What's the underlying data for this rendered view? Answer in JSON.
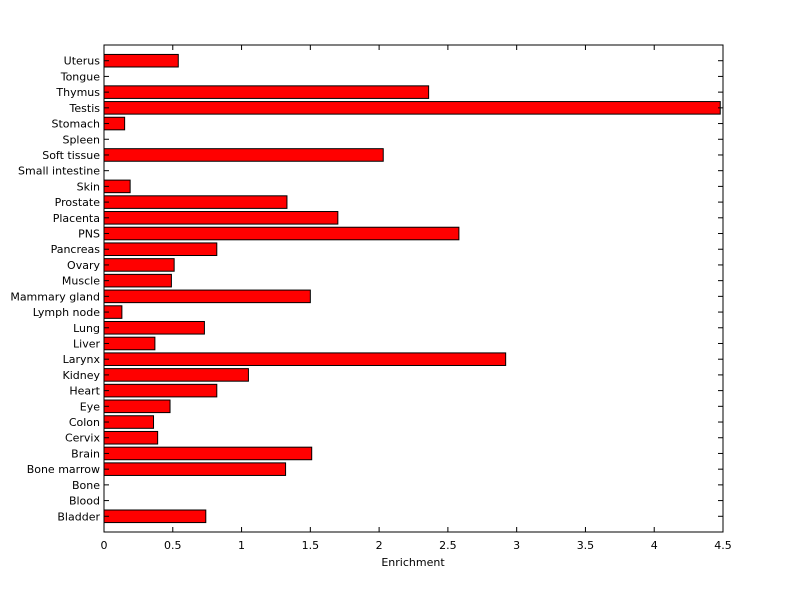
{
  "chart_data": {
    "type": "bar",
    "orientation": "horizontal",
    "title": "",
    "xlabel": "Enrichment",
    "ylabel": "",
    "xlim": [
      0,
      4.5
    ],
    "xticks": [
      0,
      0.5,
      1,
      1.5,
      2,
      2.5,
      3,
      3.5,
      4,
      4.5
    ],
    "xtick_labels": [
      "0",
      "0.5",
      "1",
      "1.5",
      "2",
      "2.5",
      "3",
      "3.5",
      "4",
      "4.5"
    ],
    "grid": false,
    "bar_color": "#ff0000",
    "bar_edge_color": "#000000",
    "categories": [
      "Bladder",
      "Blood",
      "Bone",
      "Bone marrow",
      "Brain",
      "Cervix",
      "Colon",
      "Eye",
      "Heart",
      "Kidney",
      "Larynx",
      "Liver",
      "Lung",
      "Lymph node",
      "Mammary gland",
      "Muscle",
      "Ovary",
      "Pancreas",
      "PNS",
      "Placenta",
      "Prostate",
      "Skin",
      "Small intestine",
      "Soft tissue",
      "Spleen",
      "Stomach",
      "Testis",
      "Thymus",
      "Tongue",
      "Uterus"
    ],
    "values": [
      0.74,
      0,
      0,
      1.32,
      1.51,
      0.39,
      0.36,
      0.48,
      0.82,
      1.05,
      2.92,
      0.37,
      0.73,
      0.13,
      1.5,
      0.49,
      0.51,
      0.82,
      2.58,
      1.7,
      1.33,
      0.19,
      0,
      2.03,
      0,
      0.15,
      4.48,
      2.36,
      0,
      0.54
    ]
  }
}
